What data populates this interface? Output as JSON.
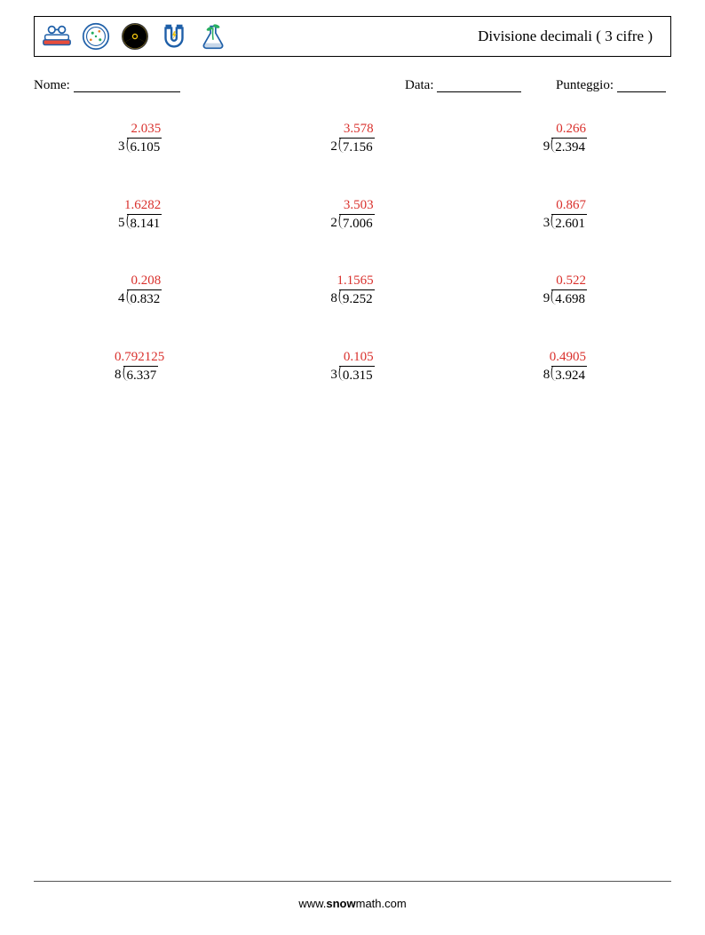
{
  "header": {
    "title": "Divisione decimali ( 3 cifre )",
    "icon_colors": {
      "books": {
        "outline": "#1e5fa8",
        "accent": "#e74c3c",
        "pages": "#fff"
      },
      "petri": {
        "outline": "#1e5fa8",
        "dots1": "#27ae60",
        "dots2": "#e67e22"
      },
      "radiation": {
        "outline": "#333",
        "yellow": "#f1c40f",
        "black": "#000"
      },
      "magnet": {
        "outline": "#1e5fa8",
        "bolt": "#f1c40f"
      },
      "flask": {
        "outline": "#1e5fa8",
        "plant": "#27ae60"
      }
    }
  },
  "meta": {
    "name_label": "Nome:",
    "date_label": "Data:",
    "score_label": "Punteggio:",
    "name_underline_width": 120,
    "date_underline_width": 95,
    "score_underline_width": 55
  },
  "colors": {
    "quotient": "#d9302c",
    "text": "#000000"
  },
  "problems": [
    {
      "quotient": "2.035",
      "divisor": "3",
      "dividend": "6.105"
    },
    {
      "quotient": "3.578",
      "divisor": "2",
      "dividend": "7.156"
    },
    {
      "quotient": "0.266",
      "divisor": "9",
      "dividend": "2.394"
    },
    {
      "quotient": "1.6282",
      "divisor": "5",
      "dividend": "8.141"
    },
    {
      "quotient": "3.503",
      "divisor": "2",
      "dividend": "7.006"
    },
    {
      "quotient": "0.867",
      "divisor": "3",
      "dividend": "2.601"
    },
    {
      "quotient": "0.208",
      "divisor": "4",
      "dividend": "0.832"
    },
    {
      "quotient": "1.1565",
      "divisor": "8",
      "dividend": "9.252"
    },
    {
      "quotient": "0.522",
      "divisor": "9",
      "dividend": "4.698"
    },
    {
      "quotient": "0.792125",
      "divisor": "8",
      "dividend": "6.337"
    },
    {
      "quotient": "0.105",
      "divisor": "3",
      "dividend": "0.315"
    },
    {
      "quotient": "0.4905",
      "divisor": "8",
      "dividend": "3.924"
    }
  ],
  "footer": {
    "url_prefix": "www.",
    "url_bold": "snow",
    "url_suffix": "math.com"
  }
}
